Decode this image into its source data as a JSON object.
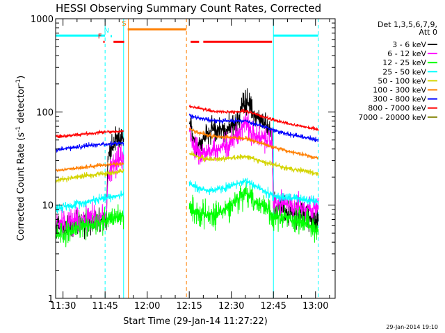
{
  "chart_data": {
    "type": "line",
    "title": "HESSI Observing Summary Count Rates, Corrected",
    "xlabel": "Start Time (29-Jan-14 11:27:22)",
    "ylabel": "Corrected Count Rate (s-1 detector-1)",
    "ylabel_parts": {
      "main": "Corrected Count Rate (s",
      "exp1": "-1",
      "mid": " detector",
      "exp2": "-1",
      "end": ")"
    },
    "x_unit": "minutes of day (UT)",
    "xlim": [
      687.367,
      787.0
    ],
    "ylim": [
      1,
      1000
    ],
    "yscale": "log",
    "x_ticks": [
      {
        "v": 690,
        "label": "11:30"
      },
      {
        "v": 705,
        "label": "11:45"
      },
      {
        "v": 720,
        "label": "12:00"
      },
      {
        "v": 735,
        "label": "12:15"
      },
      {
        "v": 750,
        "label": "12:30"
      },
      {
        "v": 765,
        "label": "12:45"
      },
      {
        "v": 780,
        "label": "13:00"
      }
    ],
    "y_ticks": [
      {
        "v": 1,
        "label": "1"
      },
      {
        "v": 10,
        "label": "10"
      },
      {
        "v": 100,
        "label": "100"
      },
      {
        "v": 1000,
        "label": "1000"
      }
    ],
    "legend": {
      "placement": "top-right outside",
      "header": [
        "Det 1,3,5,6,7,9,",
        "Att 0"
      ]
    },
    "series": [
      {
        "name": "3 - 6 keV",
        "color": "#000000",
        "noise": 0.14,
        "segments": [
          [
            [
              687.5,
              5.6
            ],
            [
              695,
              6.3
            ],
            [
              700,
              6.6
            ],
            [
              703,
              6.6
            ],
            [
              705.5,
              7
            ],
            [
              706,
              34
            ],
            [
              707,
              40
            ],
            [
              708,
              42
            ],
            [
              709,
              47
            ],
            [
              710,
              49
            ],
            [
              711.6,
              52
            ]
          ],
          [
            [
              735,
              76
            ],
            [
              736,
              60
            ],
            [
              737,
              50
            ],
            [
              738,
              43
            ],
            [
              739,
              46
            ],
            [
              740,
              53
            ],
            [
              742,
              60
            ],
            [
              745,
              65
            ],
            [
              748,
              66
            ],
            [
              750,
              67
            ],
            [
              752,
              75
            ],
            [
              754,
              118
            ],
            [
              755,
              135
            ],
            [
              756,
              128
            ],
            [
              757,
              108
            ],
            [
              758,
              95
            ],
            [
              760,
              80
            ],
            [
              763,
              68
            ],
            [
              764.5,
              64
            ],
            [
              765,
              10
            ],
            [
              766,
              9.5
            ],
            [
              770,
              8.5
            ],
            [
              775,
              7.9
            ],
            [
              781,
              6.7
            ]
          ]
        ]
      },
      {
        "name": "6 - 12 keV",
        "color": "#ff00ff",
        "noise": 0.14,
        "segments": [
          [
            [
              687.5,
              6.2
            ],
            [
              695,
              6.9
            ],
            [
              700,
              7.3
            ],
            [
              703,
              7.3
            ],
            [
              705.5,
              7.6
            ],
            [
              706,
              20
            ],
            [
              707,
              24
            ],
            [
              708,
              26
            ],
            [
              709,
              28
            ],
            [
              710,
              30
            ],
            [
              711.6,
              31
            ]
          ],
          [
            [
              735,
              63
            ],
            [
              736,
              50
            ],
            [
              737,
              42
            ],
            [
              738,
              36
            ],
            [
              740,
              35
            ],
            [
              742,
              38
            ],
            [
              745,
              40
            ],
            [
              748,
              44
            ],
            [
              750,
              50
            ],
            [
              752,
              58
            ],
            [
              754,
              72
            ],
            [
              755,
              80
            ],
            [
              756,
              72
            ],
            [
              757,
              60
            ],
            [
              760,
              52
            ],
            [
              763,
              50
            ],
            [
              764.5,
              48
            ],
            [
              765,
              10.5
            ],
            [
              770,
              10
            ],
            [
              775,
              9.5
            ],
            [
              781,
              9
            ]
          ]
        ]
      },
      {
        "name": "12 - 25 keV",
        "color": "#00ff00",
        "noise": 0.14,
        "segments": [
          [
            [
              687.5,
              4.8
            ],
            [
              695,
              5.5
            ],
            [
              700,
              6.3
            ],
            [
              703,
              6.6
            ],
            [
              705,
              6.9
            ],
            [
              711.6,
              7.6
            ]
          ],
          [
            [
              735,
              9.5
            ],
            [
              738,
              8.3
            ],
            [
              742,
              7.7
            ],
            [
              746,
              8.4
            ],
            [
              750,
              10
            ],
            [
              753,
              12.2
            ],
            [
              755,
              13.3
            ],
            [
              757,
              12
            ],
            [
              760,
              10
            ],
            [
              763,
              9
            ],
            [
              765,
              8
            ],
            [
              770,
              7.3
            ],
            [
              775,
              6.5
            ],
            [
              781,
              5.5
            ]
          ]
        ]
      },
      {
        "name": "25 - 50 keV",
        "color": "#00ffff",
        "noise": 0.05,
        "segments": [
          [
            [
              687.5,
              9.2
            ],
            [
              695,
              10.3
            ],
            [
              700,
              11.2
            ],
            [
              705,
              12
            ],
            [
              711.6,
              13
            ]
          ],
          [
            [
              735,
              17
            ],
            [
              738,
              15.2
            ],
            [
              742,
              14.3
            ],
            [
              746,
              14.8
            ],
            [
              750,
              16
            ],
            [
              753,
              17.5
            ],
            [
              755,
              18.2
            ],
            [
              757,
              17
            ],
            [
              760,
              15.2
            ],
            [
              763,
              13.5
            ],
            [
              765,
              12.5
            ],
            [
              770,
              12
            ],
            [
              775,
              11.5
            ],
            [
              781,
              11
            ]
          ]
        ]
      },
      {
        "name": "50 - 100 keV",
        "color": "#d4d400",
        "noise": 0.03,
        "segments": [
          [
            [
              687.5,
              18.5
            ],
            [
              695,
              20
            ],
            [
              700,
              21
            ],
            [
              705,
              22
            ],
            [
              711.6,
              23
            ]
          ],
          [
            [
              735,
              36
            ],
            [
              738,
              33
            ],
            [
              742,
              31
            ],
            [
              746,
              31
            ],
            [
              750,
              32
            ],
            [
              755,
              33.5
            ],
            [
              760,
              30
            ],
            [
              765,
              27
            ],
            [
              770,
              25
            ],
            [
              775,
              23.5
            ],
            [
              781,
              22
            ]
          ]
        ]
      },
      {
        "name": "100 - 300 keV",
        "color": "#ff7f00",
        "noise": 0.025,
        "segments": [
          [
            [
              687.5,
              23.5
            ],
            [
              695,
              25
            ],
            [
              700,
              26
            ],
            [
              705,
              27
            ],
            [
              711.6,
              28
            ]
          ],
          [
            [
              735,
              66
            ],
            [
              738,
              60
            ],
            [
              742,
              56
            ],
            [
              746,
              54
            ],
            [
              750,
              53
            ],
            [
              755,
              52
            ],
            [
              760,
              47
            ],
            [
              765,
              42
            ],
            [
              770,
              38
            ],
            [
              775,
              35
            ],
            [
              781,
              32
            ]
          ]
        ]
      },
      {
        "name": "300 - 800 keV",
        "color": "#0000ff",
        "noise": 0.025,
        "segments": [
          [
            [
              687.5,
              39
            ],
            [
              695,
              42
            ],
            [
              700,
              44
            ],
            [
              705,
              45
            ],
            [
              711.6,
              46
            ]
          ],
          [
            [
              735,
              92
            ],
            [
              738,
              86
            ],
            [
              742,
              82
            ],
            [
              746,
              80
            ],
            [
              750,
              80
            ],
            [
              755,
              80
            ],
            [
              760,
              72
            ],
            [
              765,
              64
            ],
            [
              770,
              58
            ],
            [
              775,
              54
            ],
            [
              781,
              50
            ]
          ]
        ]
      },
      {
        "name": "800 - 7000 keV",
        "color": "#ff0000",
        "noise": 0.02,
        "segments": [
          [
            [
              687.5,
              54
            ],
            [
              695,
              57
            ],
            [
              700,
              59
            ],
            [
              705,
              61
            ],
            [
              711.6,
              62
            ]
          ],
          [
            [
              735,
              115
            ],
            [
              738,
              110
            ],
            [
              742,
              104
            ],
            [
              746,
              100
            ],
            [
              750,
              100
            ],
            [
              755,
              102
            ],
            [
              760,
              92
            ],
            [
              765,
              82
            ],
            [
              770,
              75
            ],
            [
              775,
              70
            ],
            [
              781,
              65
            ]
          ]
        ]
      },
      {
        "name": "7000 - 20000 keV",
        "color": "#808000",
        "segments": []
      }
    ],
    "bars": [
      {
        "label": "",
        "color": "#00ffff",
        "y": 660,
        "from": 687.5,
        "to": 705.0
      },
      {
        "label": "",
        "color": "#00ffff",
        "y": 660,
        "from": 765.0,
        "to": 781.0
      },
      {
        "label": "",
        "color": "#ff7f00",
        "y": 770,
        "from": 713.5,
        "to": 734.0
      },
      {
        "label": "",
        "color": "#ff0000",
        "y": 565,
        "from": 708.0,
        "to": 711.8
      },
      {
        "label": "",
        "color": "#ff0000",
        "y": 565,
        "from": 735.5,
        "to": 738.5
      },
      {
        "label": "",
        "color": "#ff0000",
        "y": 565,
        "from": 740.0,
        "to": 764.5
      }
    ],
    "bar_markers": [
      {
        "label": "F",
        "color": "#ff0000",
        "x": 704.6,
        "y": 565
      },
      {
        "label": "N",
        "color": "#00ffff",
        "x": 707.2,
        "y": 650
      },
      {
        "label": "S",
        "color": "#ff7f00",
        "x": 713.3,
        "y": 770
      }
    ],
    "vlines": [
      {
        "x": 705.0,
        "color": "#00ffff",
        "style": "dashed"
      },
      {
        "x": 711.6,
        "color": "#00ffff",
        "style": "solid"
      },
      {
        "x": 713.3,
        "color": "#ff7f00",
        "style": "solid"
      },
      {
        "x": 734.0,
        "color": "#ff7f00",
        "style": "dashed"
      },
      {
        "x": 765.0,
        "color": "#00ffff",
        "style": "solid"
      },
      {
        "x": 781.0,
        "color": "#00ffff",
        "style": "dashed"
      }
    ]
  },
  "timestamp": "29-Jan-2014 19:10"
}
